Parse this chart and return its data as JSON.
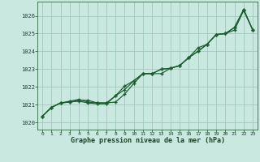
{
  "title": "Graphe pression niveau de la mer (hPa)",
  "bg_color": "#c8e8e0",
  "grid_color": "#a0c8b8",
  "line_color": "#1a5c2e",
  "x_ticks": [
    0,
    1,
    2,
    3,
    4,
    5,
    6,
    7,
    8,
    9,
    10,
    11,
    12,
    13,
    14,
    15,
    16,
    17,
    18,
    19,
    20,
    21,
    22,
    23
  ],
  "ylim": [
    1019.6,
    1026.8
  ],
  "yticks": [
    1020,
    1021,
    1022,
    1023,
    1024,
    1025,
    1026
  ],
  "series1": [
    1020.35,
    1020.85,
    1021.1,
    1021.15,
    1021.2,
    1021.1,
    1021.05,
    1021.05,
    1021.5,
    1021.85,
    1022.35,
    1022.75,
    1022.75,
    1023.0,
    1023.05,
    1023.2,
    1023.65,
    1024.0,
    1024.4,
    1024.95,
    1025.0,
    1025.2,
    1026.3,
    1025.2
  ],
  "series2": [
    1020.35,
    1020.85,
    1021.1,
    1021.15,
    1021.25,
    1021.25,
    1021.1,
    1021.1,
    1021.15,
    1021.6,
    1022.2,
    1022.75,
    1022.75,
    1022.75,
    1023.05,
    1023.2,
    1023.65,
    1024.2,
    1024.4,
    1024.95,
    1025.0,
    1025.35,
    1026.35,
    1025.2
  ],
  "series3": [
    1020.35,
    1020.85,
    1021.1,
    1021.2,
    1021.3,
    1021.15,
    1021.1,
    1021.1,
    1021.5,
    1022.05,
    1022.35,
    1022.75,
    1022.75,
    1023.0,
    1023.05,
    1023.2,
    1023.65,
    1024.0,
    1024.4,
    1024.95,
    1025.0,
    1025.35,
    1026.35,
    1025.2
  ]
}
